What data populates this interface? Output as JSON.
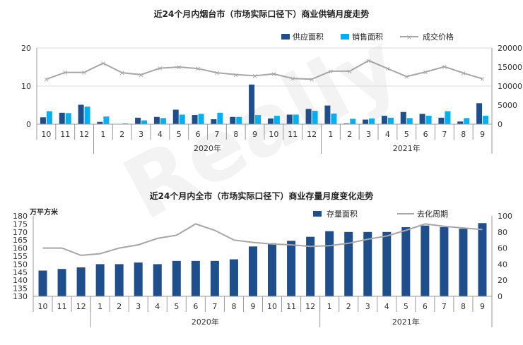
{
  "colors": {
    "supply": "#1f4e8c",
    "sales": "#00b0f0",
    "price": "#a6a6a6",
    "stock": "#1f4e8c",
    "cycle": "#a6a6a6"
  },
  "chart_data": [
    {
      "type": "bar",
      "title": "近24个月内烟台市（市场实际口径下）商业供销月度走势",
      "categories": [
        "10",
        "11",
        "12",
        "1",
        "2",
        "3",
        "4",
        "5",
        "6",
        "7",
        "8",
        "9",
        "10",
        "11",
        "12",
        "1",
        "2",
        "3",
        "4",
        "5",
        "6",
        "7",
        "8",
        "9"
      ],
      "years": [
        {
          "label": "2020年",
          "start": 3,
          "end": 14
        },
        {
          "label": "2021年",
          "start": 15,
          "end": 23
        }
      ],
      "series": [
        {
          "name": "供应面积",
          "axis": "left",
          "values": [
            1.8,
            3.0,
            5.1,
            0.6,
            0.0,
            1.7,
            1.9,
            3.8,
            2.4,
            1.3,
            1.9,
            10.4,
            1.5,
            2.5,
            4.0,
            4.9,
            0.2,
            1.2,
            2.2,
            3.2,
            2.7,
            1.7,
            0.7,
            5.5
          ]
        },
        {
          "name": "销售面积",
          "axis": "left",
          "values": [
            3.4,
            2.9,
            4.6,
            2.0,
            0.2,
            1.0,
            1.6,
            2.5,
            2.7,
            3.0,
            1.9,
            2.4,
            2.2,
            2.5,
            3.5,
            2.8,
            1.4,
            1.5,
            1.7,
            1.6,
            2.2,
            3.4,
            1.6,
            2.2
          ]
        },
        {
          "name": "成交价格",
          "axis": "right",
          "type": "line",
          "values": [
            11800,
            13600,
            13600,
            16000,
            13500,
            13000,
            14700,
            15000,
            14600,
            13500,
            13000,
            12700,
            13200,
            12000,
            11800,
            13900,
            13900,
            16700,
            14600,
            12500,
            13700,
            15100,
            13400,
            11900
          ]
        }
      ],
      "ylim_left": [
        0,
        20
      ],
      "yticks_left": [
        0,
        10,
        20
      ],
      "ylim_right": [
        0,
        20000
      ],
      "yticks_right": [
        0,
        5000,
        10000,
        15000,
        20000
      ],
      "legend": "top-right"
    },
    {
      "type": "bar",
      "title": "近24个月内全市（市场实际口径下）商业存量月度变化走势",
      "ylabel": "万平方米",
      "categories": [
        "10",
        "11",
        "12",
        "1",
        "2",
        "3",
        "4",
        "5",
        "6",
        "7",
        "8",
        "9",
        "10",
        "11",
        "12",
        "1",
        "2",
        "3",
        "4",
        "5",
        "6",
        "7",
        "8",
        "9"
      ],
      "years": [
        {
          "label": "2020年",
          "start": 3,
          "end": 14
        },
        {
          "label": "2021年",
          "start": 15,
          "end": 23
        }
      ],
      "series": [
        {
          "name": "存量面积",
          "axis": "left",
          "values": [
            146,
            147,
            148,
            150,
            150,
            151,
            150,
            152,
            152,
            152,
            153,
            161,
            163,
            164.5,
            167,
            170.5,
            170,
            170,
            170,
            173,
            174,
            173,
            172,
            175.5
          ]
        },
        {
          "name": "去化周期",
          "axis": "right",
          "type": "line",
          "values": [
            60,
            60,
            51,
            53,
            60,
            64,
            72,
            76,
            90,
            82,
            70,
            67,
            65,
            64,
            62,
            63,
            66,
            71,
            75,
            82,
            90,
            87,
            85,
            83
          ]
        }
      ],
      "ylim_left": [
        130,
        180
      ],
      "yticks_left": [
        130,
        135,
        140,
        145,
        150,
        155,
        160,
        165,
        170,
        175,
        180
      ],
      "ylim_right": [
        0,
        100
      ],
      "yticks_right": [
        0,
        20,
        40,
        60,
        80,
        100
      ],
      "legend": "top-right"
    }
  ]
}
